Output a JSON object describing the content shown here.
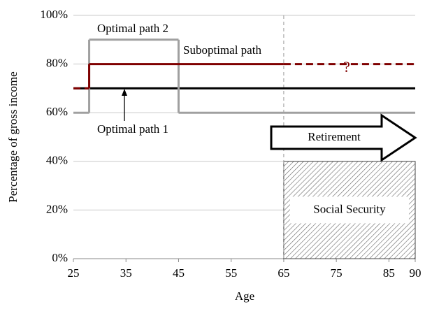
{
  "chart_data": {
    "type": "line",
    "y_label": "Percentage of gross income",
    "x_label": "Age",
    "xlim": [
      25,
      90
    ],
    "xticks": [
      25,
      35,
      45,
      55,
      65,
      75,
      85,
      90
    ],
    "ylim": [
      0,
      100
    ],
    "yticks": [
      {
        "value": 0,
        "label": "0%"
      },
      {
        "value": 20,
        "label": "20%"
      },
      {
        "value": 40,
        "label": "40%"
      },
      {
        "value": 60,
        "label": "60%"
      },
      {
        "value": 80,
        "label": "80%"
      },
      {
        "value": 100,
        "label": "100%"
      }
    ],
    "grid": true,
    "series": [
      {
        "name": "Optimal path 1",
        "color": "#000000",
        "x": [
          25,
          90
        ],
        "values": [
          70,
          70
        ],
        "segment_styles": [
          "solid"
        ]
      },
      {
        "name": "Optimal path 2",
        "color": "#a0a0a0",
        "x": [
          25,
          28,
          28,
          45,
          45,
          90
        ],
        "values": [
          60,
          60,
          90,
          90,
          60,
          60
        ],
        "segment_styles": [
          "solid",
          "solid",
          "solid",
          "solid",
          "solid"
        ]
      },
      {
        "name": "Suboptimal path",
        "color": "#7f0000",
        "x": [
          25,
          28,
          28,
          65,
          90
        ],
        "values": [
          70,
          70,
          80,
          80,
          80
        ],
        "segment_styles": [
          "dashed",
          "solid",
          "solid",
          "dashed"
        ]
      }
    ],
    "vline": 65,
    "question_mark": "?",
    "retirement_label": "Retirement",
    "shaded_region": {
      "label": "Social Security",
      "x": [
        65,
        90
      ],
      "y": [
        0,
        40
      ]
    }
  }
}
